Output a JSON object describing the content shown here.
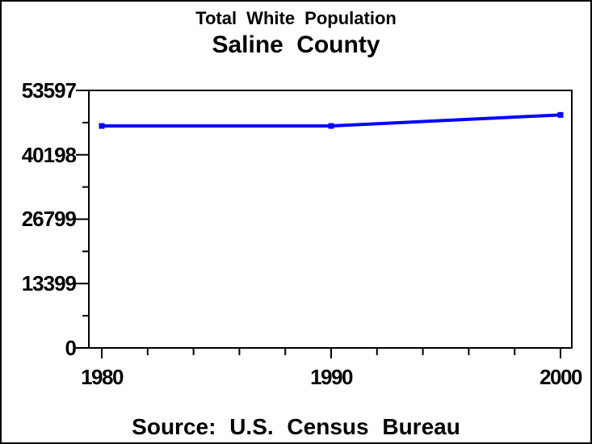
{
  "header": {
    "line1": "Total White Population",
    "line2": "Saline County"
  },
  "footer": {
    "source": "Source: U.S. Census Bureau"
  },
  "chart_data": {
    "type": "line",
    "title": "Total White Population",
    "subtitle": "Saline County",
    "footnote": "Source: U.S. Census Bureau",
    "x": [
      1980,
      1990,
      2000
    ],
    "series": [
      {
        "name": "Total White Population",
        "values": [
          46200,
          46200,
          48500
        ]
      }
    ],
    "xlabel": "",
    "ylabel": "",
    "xlim": [
      1980,
      2000
    ],
    "ylim": [
      0,
      53597
    ],
    "xticks": [
      1980,
      1990,
      2000
    ],
    "yticks": [
      0,
      13399,
      26799,
      40198,
      53597
    ],
    "x_minor_step_years": 2,
    "y_minor_ticks_between_majors": 1,
    "grid": false,
    "legend_position": "none",
    "line_color": "#0000ff",
    "marker": "square",
    "axis_color": "#000000",
    "background_color": "#ffffff"
  }
}
